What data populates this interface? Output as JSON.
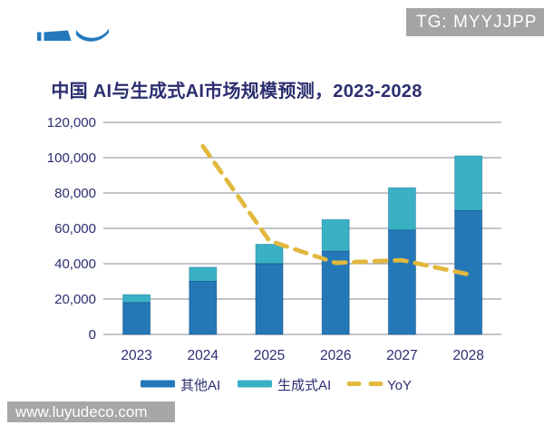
{
  "page": {
    "tg_badge": "TG: MYYJJPP",
    "site_watermark": "www.luyudeco.com"
  },
  "colors": {
    "other_ai_blue": "#2478b8",
    "gen_ai_teal": "#3ab0c5",
    "yoy_yellow": "#e2b83d",
    "grid_gray": "#9aa0ad",
    "text_navy": "#2b2e6f",
    "watermark_gray": "#a4a4a4",
    "logo_blue": "#2479bd"
  },
  "chart_data": {
    "type": "bar",
    "subtype": "stacked-bars-with-dashed-line",
    "title": "中国 AI与生成式AI市场规模预测，2023-2028",
    "categories": [
      "2023",
      "2024",
      "2025",
      "2026",
      "2027",
      "2028"
    ],
    "series": [
      {
        "name": "其他AI",
        "type": "bar-stack",
        "color": "#2478b8",
        "values": [
          18000,
          30000,
          40000,
          47000,
          59000,
          70000
        ]
      },
      {
        "name": "生成式AI",
        "type": "bar-stack",
        "color": "#3ab0c5",
        "values": [
          4500,
          8000,
          11000,
          18000,
          24000,
          31000
        ]
      }
    ],
    "stack_totals": [
      22500,
      38000,
      51000,
      65000,
      83000,
      101000
    ],
    "yoy_line": {
      "name": "YoY",
      "type": "dashed-line",
      "color": "#e2b83d",
      "x_categories": [
        "2024",
        "2025",
        "2026",
        "2027",
        "2028"
      ],
      "plotted_primary_equiv": [
        106500,
        53000,
        40500,
        42000,
        34000
      ],
      "percent_estimate": [
        69,
        34,
        27,
        28,
        22
      ]
    },
    "xlabel": "",
    "ylabel": "",
    "ylim": [
      0,
      120000
    ],
    "ytick_values": [
      0,
      20000,
      40000,
      60000,
      80000,
      100000,
      120000
    ],
    "ytick_labels": [
      "0",
      "20,000",
      "40,000",
      "60,000",
      "80,000",
      "100,000",
      "120,000"
    ],
    "grid": true,
    "legend_position": "bottom",
    "legend": [
      "其他AI",
      "生成式AI",
      "YoY"
    ]
  }
}
